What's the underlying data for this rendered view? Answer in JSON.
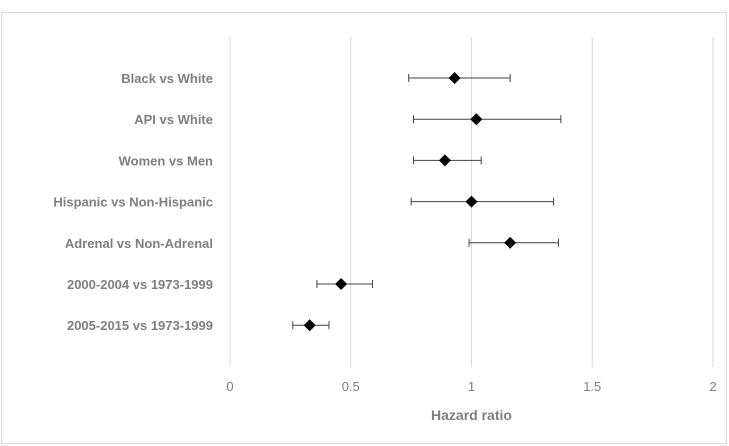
{
  "chart_data": {
    "type": "scatter",
    "subtype": "forest-plot",
    "xlabel": "Hazard ratio",
    "xlim": [
      0,
      2
    ],
    "xticks": [
      "0",
      "0.5",
      "1",
      "1.5",
      "2"
    ],
    "grid": "vertical",
    "marker": "diamond",
    "colors": {
      "marker": "#000000",
      "grid": "#d9d9d9",
      "text": "#7f7f7f",
      "errorbar": "#404040"
    },
    "rows": [
      {
        "label": "Black vs White",
        "hr": 0.93,
        "lower": 0.74,
        "upper": 1.16
      },
      {
        "label": "API vs White",
        "hr": 1.02,
        "lower": 0.76,
        "upper": 1.37
      },
      {
        "label": "Women vs Men",
        "hr": 0.89,
        "lower": 0.76,
        "upper": 1.04
      },
      {
        "label": "Hispanic vs Non-Hispanic",
        "hr": 1.0,
        "lower": 0.75,
        "upper": 1.34
      },
      {
        "label": "Adrenal vs Non-Adrenal",
        "hr": 1.16,
        "lower": 0.99,
        "upper": 1.36
      },
      {
        "label": "2000-2004 vs 1973-1999",
        "hr": 0.46,
        "lower": 0.36,
        "upper": 0.59
      },
      {
        "label": "2005-2015 vs 1973-1999",
        "hr": 0.33,
        "lower": 0.26,
        "upper": 0.41
      }
    ]
  }
}
